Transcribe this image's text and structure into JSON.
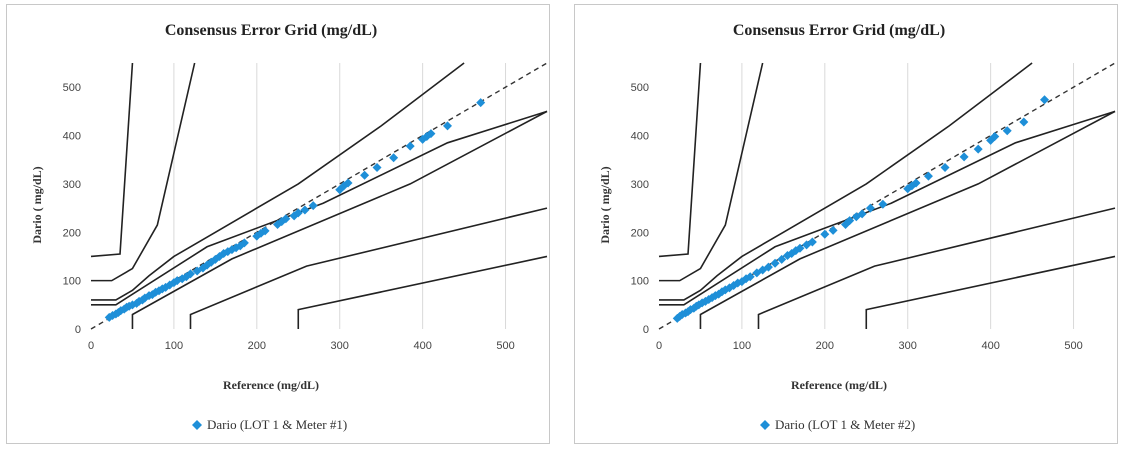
{
  "chart_data": [
    {
      "type": "scatter",
      "title": "Consensus Error Grid (mg/dL)",
      "xlabel": "Reference  (mg/dL)",
      "ylabel": "Dario ( mg/dL)",
      "xlim": [
        0,
        550
      ],
      "ylim": [
        0,
        550
      ],
      "x_ticks": [
        "0",
        "100",
        "200",
        "300",
        "400",
        "500"
      ],
      "y_ticks": [
        "0",
        "100",
        "200",
        "300",
        "400",
        "500"
      ],
      "grid": "vertical",
      "legend_position": "bottom",
      "marker_color": "#1e8fd8",
      "zone_line_color": "#222222",
      "identity_line": "dashed",
      "zones": [
        [
          [
            0,
            50
          ],
          [
            30,
            50
          ],
          [
            140,
            170
          ],
          [
            280,
            260
          ],
          [
            430,
            385
          ],
          [
            550,
            450
          ]
        ],
        [
          [
            0,
            60
          ],
          [
            30,
            60
          ],
          [
            50,
            80
          ],
          [
            70,
            110
          ],
          [
            100,
            150
          ],
          [
            150,
            200
          ],
          [
            250,
            300
          ],
          [
            350,
            420
          ],
          [
            450,
            550
          ]
        ],
        [
          [
            50,
            0
          ],
          [
            50,
            30
          ],
          [
            170,
            145
          ],
          [
            385,
            300
          ],
          [
            550,
            450
          ]
        ],
        [
          [
            0,
            100
          ],
          [
            25,
            100
          ],
          [
            50,
            125
          ],
          [
            80,
            215
          ],
          [
            125,
            550
          ]
        ],
        [
          [
            0,
            150
          ],
          [
            35,
            155
          ],
          [
            50,
            550
          ]
        ],
        [
          [
            120,
            0
          ],
          [
            120,
            30
          ],
          [
            260,
            130
          ],
          [
            550,
            250
          ]
        ],
        [
          [
            250,
            0
          ],
          [
            250,
            40
          ],
          [
            550,
            150
          ]
        ]
      ],
      "series": [
        {
          "name": "Dario (LOT 1 & Meter #1)",
          "x": [
            22,
            26,
            30,
            33,
            36,
            40,
            43,
            46,
            50,
            55,
            58,
            62,
            65,
            70,
            74,
            78,
            82,
            86,
            90,
            95,
            100,
            104,
            110,
            115,
            120,
            128,
            135,
            140,
            145,
            150,
            155,
            160,
            165,
            170,
            175,
            180,
            185,
            200,
            205,
            210,
            225,
            230,
            235,
            245,
            250,
            258,
            268,
            300,
            305,
            310,
            330,
            345,
            365,
            385,
            400,
            405,
            410,
            430,
            470
          ],
          "y": [
            24,
            28,
            31,
            34,
            38,
            41,
            45,
            47,
            50,
            53,
            57,
            60,
            64,
            69,
            71,
            76,
            79,
            83,
            86,
            91,
            96,
            100,
            104,
            108,
            114,
            120,
            126,
            132,
            138,
            144,
            150,
            156,
            160,
            164,
            168,
            172,
            178,
            192,
            198,
            203,
            216,
            222,
            228,
            234,
            240,
            246,
            255,
            288,
            296,
            302,
            318,
            334,
            354,
            378,
            392,
            398,
            404,
            420,
            468
          ]
        },
        {
          "name": "Dario (LOT 1 & Meter #2)",
          "x": [
            22,
            25,
            28,
            32,
            35,
            38,
            42,
            45,
            48,
            52,
            56,
            60,
            64,
            68,
            72,
            76,
            80,
            85,
            90,
            95,
            100,
            105,
            110,
            118,
            125,
            132,
            140,
            148,
            155,
            160,
            165,
            170,
            178,
            185,
            200,
            210,
            225,
            230,
            238,
            245,
            255,
            270,
            300,
            305,
            310,
            325,
            345,
            368,
            385,
            400,
            405,
            420,
            440,
            465
          ],
          "y": [
            22,
            26,
            30,
            33,
            36,
            40,
            43,
            47,
            50,
            54,
            57,
            61,
            65,
            69,
            72,
            77,
            81,
            85,
            90,
            95,
            98,
            104,
            108,
            116,
            122,
            128,
            136,
            144,
            152,
            156,
            162,
            167,
            174,
            180,
            196,
            204,
            216,
            224,
            232,
            238,
            250,
            258,
            290,
            296,
            302,
            316,
            334,
            356,
            372,
            390,
            398,
            410,
            428,
            474
          ]
        }
      ]
    }
  ]
}
